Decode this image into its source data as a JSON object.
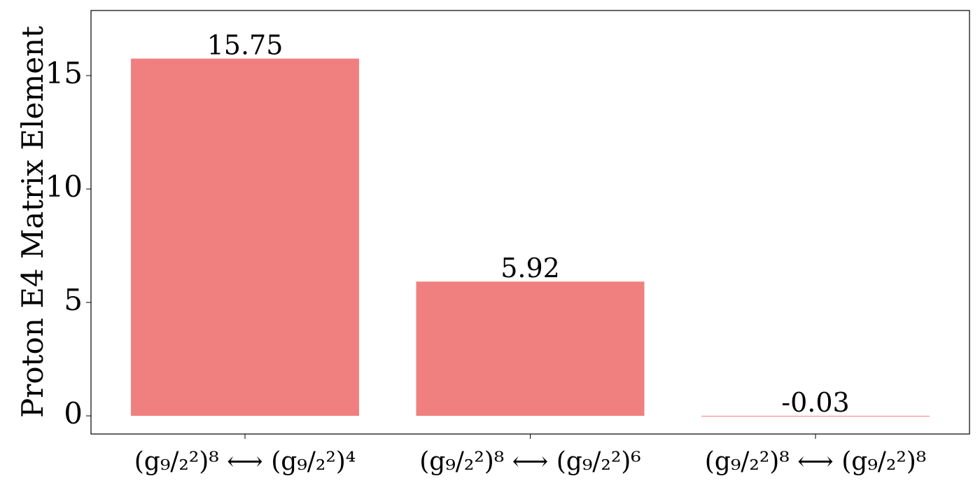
{
  "chart_data": {
    "type": "bar",
    "ylabel": "Proton E4 Matrix Element",
    "categories": [
      "(g₉/₂²)⁸ ⟷ (g₉/₂²)⁴",
      "(g₉/₂²)⁸ ⟷ (g₉/₂²)⁶",
      "(g₉/₂²)⁸ ⟷ (g₉/₂²)⁸"
    ],
    "values": [
      15.75,
      5.92,
      -0.03
    ],
    "color": "#f08080",
    "ylim": [
      -0.8,
      17.87
    ],
    "yticks": [
      0,
      5,
      10,
      15
    ]
  }
}
